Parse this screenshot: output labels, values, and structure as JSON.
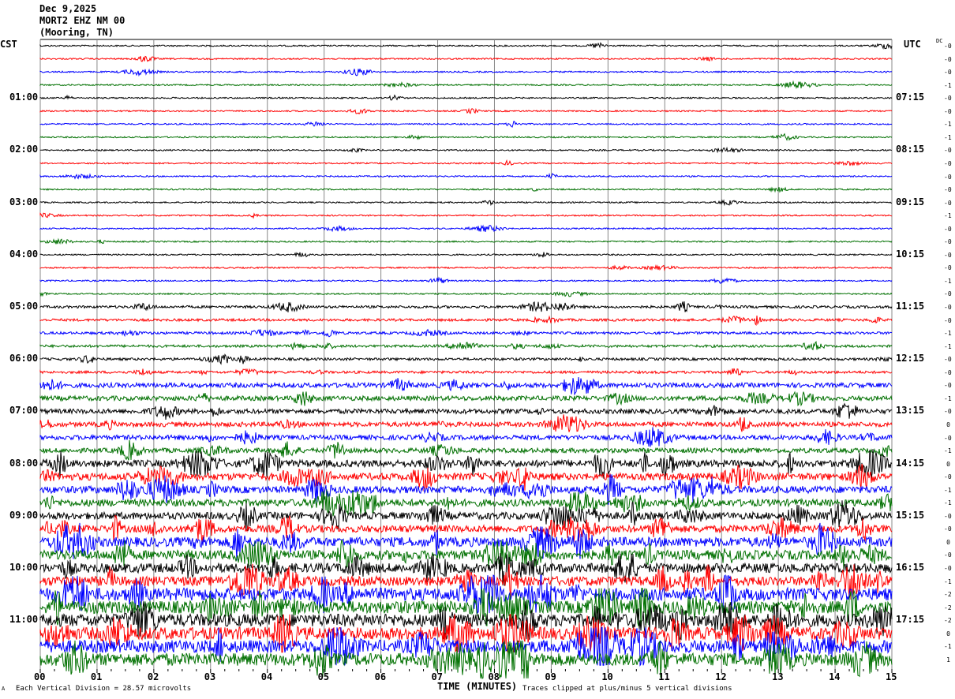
{
  "header": {
    "date": "Dec 9,2025",
    "station": "MORT2 EHZ NM 00",
    "location": "(Mooring, TN)"
  },
  "left_axis": {
    "timezone": "CST",
    "labels": [
      "01:00",
      "02:00",
      "03:00",
      "04:00",
      "05:00",
      "06:00",
      "07:00",
      "08:00",
      "09:00",
      "10:00",
      "11:00"
    ]
  },
  "right_axis": {
    "timezone": "UTC",
    "labels": [
      "07:15",
      "08:15",
      "09:15",
      "10:15",
      "11:15",
      "12:15",
      "13:15",
      "14:15",
      "15:15",
      "16:15",
      "17:15"
    ],
    "dc_header": "DC",
    "dc_values": [
      "-0",
      "-0",
      "-0",
      "-1",
      "-0",
      "-0",
      "-1",
      "-1",
      "-0",
      "-0",
      "-0",
      "-0",
      "-0",
      "-1",
      "-0",
      "-0",
      "-0",
      "-0",
      "-1",
      "-0",
      "-0",
      "-0",
      "-1",
      "-1",
      "-0",
      "-0",
      "-0",
      "-1",
      "-0",
      "0",
      "-0",
      "-1",
      "0",
      "-0",
      "-1",
      "-1",
      "-0",
      "-0",
      "0",
      "-0",
      "-0",
      "-1",
      "-2",
      "-2",
      "-2",
      "0",
      "-1",
      "1"
    ]
  },
  "footer": {
    "scale_note": "Each Vertical Division =   28.57 microvolts",
    "xlabel": "TIME (MINUTES)",
    "clip_note": "Traces clipped at plus/minus 5 vertical divisions",
    "corner_mark": "A"
  },
  "chart_data": {
    "type": "line",
    "xlabel": "TIME (MINUTES)",
    "x_ticks": [
      "00",
      "01",
      "02",
      "03",
      "04",
      "05",
      "06",
      "07",
      "08",
      "09",
      "10",
      "11",
      "12",
      "13",
      "14",
      "15"
    ],
    "xlim": [
      0,
      15
    ],
    "grid": true,
    "rows_per_hour": 4,
    "row_count": 48,
    "trace_colors": [
      "#000000",
      "#ff0000",
      "#0000ff",
      "#007000"
    ]
  }
}
